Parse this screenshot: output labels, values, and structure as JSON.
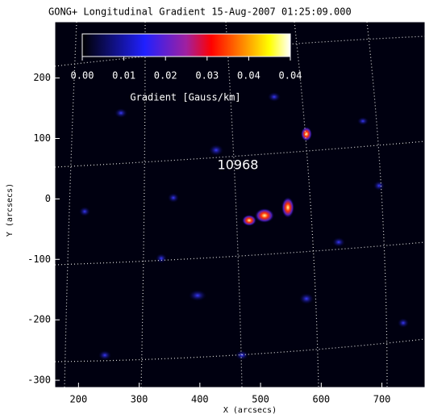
{
  "chart_data": {
    "type": "heatmap",
    "title": "GONG+ Longitudinal Gradient 15-Aug-2007 01:25:09.000",
    "xlabel": "X (arcsecs)",
    "ylabel": "Y (arcsecs)",
    "xlim": [
      161,
      771
    ],
    "xticks": [
      200,
      300,
      400,
      500,
      600,
      700
    ],
    "ylim": [
      -312,
      293
    ],
    "yticks": [
      -300,
      -200,
      -100,
      0,
      100,
      200
    ],
    "colorbar_label": "Gradient [Gauss/km]",
    "clim": [
      0,
      0.044
    ],
    "colorbar_ticks": [
      {
        "value": 0,
        "label": "0.00"
      },
      {
        "value": 0.0088,
        "label": "0.01"
      },
      {
        "value": 0.0176,
        "label": "0.02"
      },
      {
        "value": 0.0264,
        "label": "0.03"
      },
      {
        "value": 0.0352,
        "label": "0.04"
      },
      {
        "value": 0.044,
        "label": "0.04"
      }
    ],
    "annotations": [
      "10968"
    ]
  }
}
